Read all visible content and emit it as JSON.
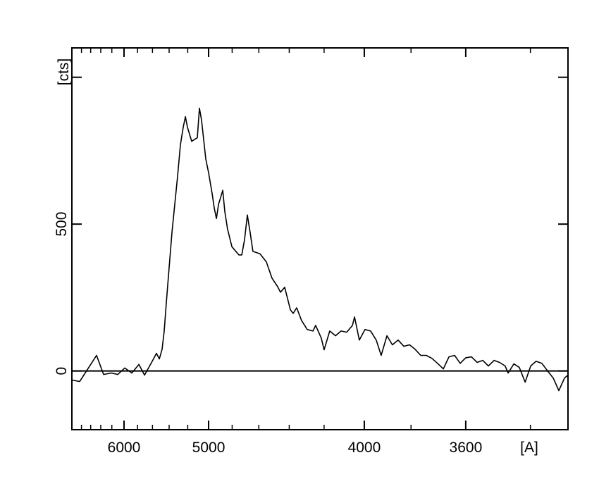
{
  "chart_data": {
    "type": "line",
    "title": "",
    "xlabel": "[A]",
    "ylabel": "[cts]",
    "x_scale": "inverse-square wavelength (1/λ²)",
    "xlim": [
      7029,
      3298
    ],
    "ylim": [
      -200,
      1100
    ],
    "x_major_ticks": [
      6000,
      5000,
      4000,
      3600
    ],
    "x_tick_labels": [
      "6000",
      "5000",
      "4000",
      "3600"
    ],
    "x_minor_ticks": [
      6800,
      6600,
      6400,
      6200,
      5800,
      5600,
      5400,
      5200,
      4800,
      4600,
      4400,
      4200,
      3800,
      3400
    ],
    "y_major_ticks": [
      0,
      500,
      1000
    ],
    "y_tick_labels": [
      "0",
      "500",
      ""
    ],
    "zero_line": true,
    "grid": false,
    "line_color": "#000000",
    "series": [
      {
        "x": [
          7029,
          6841,
          6639,
          6481,
          6347,
          6208,
          6101,
          5989,
          5882,
          5781,
          5704,
          5603,
          5550,
          5515,
          5482,
          5457,
          5432,
          5400,
          5368,
          5337,
          5306,
          5276,
          5246,
          5224,
          5203,
          5160,
          5105,
          5085,
          5065,
          5026,
          5000,
          4968,
          4950,
          4931,
          4913,
          4877,
          4860,
          4837,
          4802,
          4747,
          4725,
          4704,
          4683,
          4662,
          4642,
          4592,
          4548,
          4510,
          4473,
          4455,
          4428,
          4393,
          4376,
          4355,
          4326,
          4293,
          4261,
          4246,
          4215,
          4200,
          4170,
          4140,
          4112,
          4084,
          4056,
          4046,
          4023,
          3997,
          3971,
          3946,
          3924,
          3899,
          3876,
          3852,
          3829,
          3806,
          3784,
          3762,
          3741,
          3720,
          3699,
          3678,
          3658,
          3638,
          3619,
          3600,
          3581,
          3562,
          3544,
          3526,
          3508,
          3491,
          3474,
          3465,
          3448,
          3432,
          3415,
          3399,
          3384,
          3368,
          3352,
          3337,
          3322,
          3307,
          3298
        ],
        "y": [
          -31,
          -36,
          12,
          53,
          -12,
          -7,
          -12,
          10,
          -7,
          22,
          -14,
          33,
          60,
          41,
          74,
          136,
          232,
          352,
          471,
          567,
          663,
          770,
          830,
          866,
          830,
          782,
          794,
          895,
          854,
          722,
          675,
          603,
          555,
          519,
          567,
          615,
          543,
          483,
          423,
          395,
          395,
          447,
          531,
          471,
          407,
          399,
          371,
          316,
          287,
          268,
          285,
          208,
          196,
          215,
          172,
          141,
          136,
          155,
          112,
          72,
          136,
          120,
          136,
          132,
          155,
          184,
          105,
          141,
          136,
          105,
          53,
          120,
          89,
          105,
          84,
          89,
          74,
          53,
          53,
          43,
          26,
          7,
          48,
          53,
          26,
          45,
          48,
          29,
          36,
          17,
          36,
          29,
          17,
          -7,
          24,
          12,
          -38,
          17,
          33,
          26,
          0,
          -24,
          -67,
          -24,
          -14
        ]
      }
    ]
  }
}
